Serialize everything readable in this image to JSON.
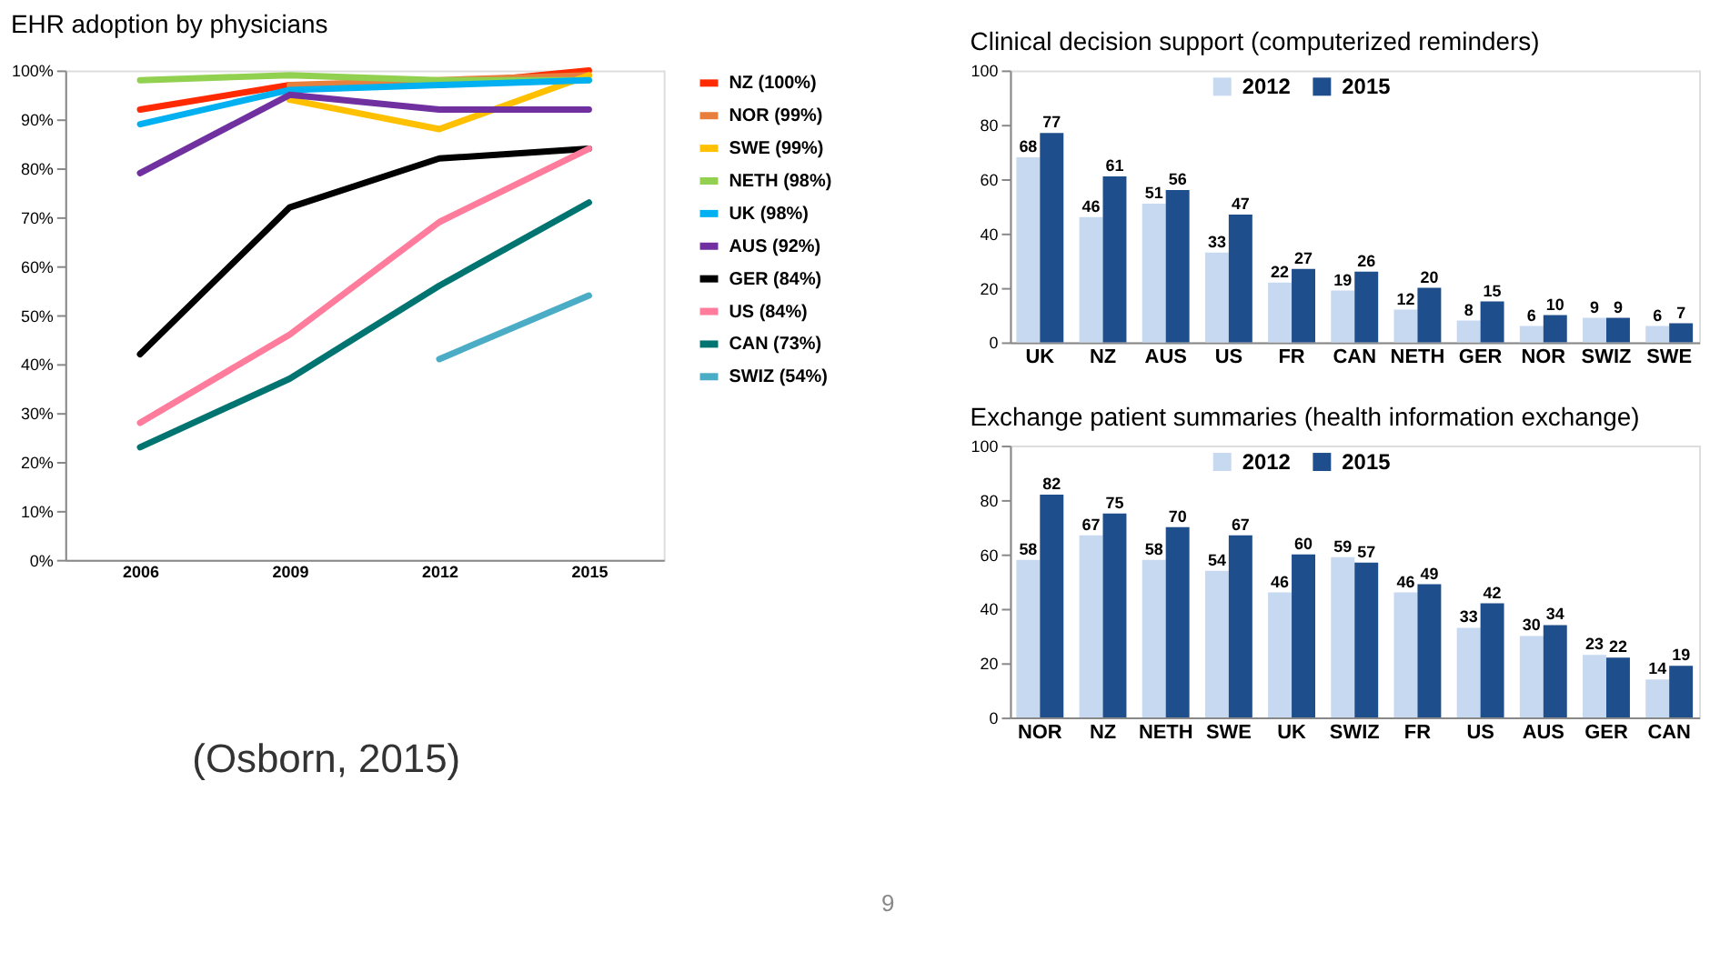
{
  "chart_data": [
    {
      "type": "line",
      "title": "EHR adoption by physicians",
      "categories": [
        "2006",
        "2009",
        "2012",
        "2015"
      ],
      "ylim": [
        0,
        100
      ],
      "yticks": [
        {
          "value": 0,
          "label": "0%"
        },
        {
          "value": 10,
          "label": "10%"
        },
        {
          "value": 20,
          "label": "20%"
        },
        {
          "value": 30,
          "label": "30%"
        },
        {
          "value": 40,
          "label": "40%"
        },
        {
          "value": 50,
          "label": "50%"
        },
        {
          "value": 60,
          "label": "60%"
        },
        {
          "value": 70,
          "label": "70%"
        },
        {
          "value": 80,
          "label": "80%"
        },
        {
          "value": 90,
          "label": "90%"
        },
        {
          "value": 100,
          "label": "100%"
        }
      ],
      "grid": false,
      "legend": "right",
      "marker": "none",
      "line_style": "solid",
      "series": [
        {
          "name": "NZ (100%)",
          "color": "#ff2a00",
          "values": [
            92,
            97,
            97,
            100
          ]
        },
        {
          "name": "NOR (99%)",
          "color": "#e87f3c",
          "values": [
            null,
            97,
            98,
            99
          ]
        },
        {
          "name": "SWE (99%)",
          "color": "#ffc000",
          "values": [
            null,
            94,
            88,
            99
          ]
        },
        {
          "name": "NETH (98%)",
          "color": "#92d050",
          "values": [
            98,
            99,
            98,
            98
          ]
        },
        {
          "name": "UK (98%)",
          "color": "#00b0f0",
          "values": [
            89,
            96,
            97,
            98
          ]
        },
        {
          "name": "AUS (92%)",
          "color": "#7030a0",
          "values": [
            79,
            95,
            92,
            92
          ]
        },
        {
          "name": "GER (84%)",
          "color": "#000000",
          "values": [
            42,
            72,
            82,
            84
          ]
        },
        {
          "name": "US (84%)",
          "color": "#ff7c9c",
          "values": [
            28,
            46,
            69,
            84
          ]
        },
        {
          "name": "CAN (73%)",
          "color": "#007470",
          "values": [
            23,
            37,
            56,
            73
          ]
        },
        {
          "name": "SWIZ (54%)",
          "color": "#4bacc6",
          "values": [
            null,
            null,
            41,
            54
          ]
        }
      ],
      "annotations": [
        "(Osborn, 2015)",
        "9"
      ]
    },
    {
      "type": "bar",
      "title": "Clinical decision support (computerized reminders)",
      "categories": [
        "UK",
        "NZ",
        "AUS",
        "US",
        "FR",
        "CAN",
        "NETH",
        "GER",
        "NOR",
        "SWIZ",
        "SWE"
      ],
      "ylim": [
        0,
        100
      ],
      "yticks": [
        0,
        20,
        40,
        60,
        80,
        100
      ],
      "grid": false,
      "legend": "top",
      "data_labels": true,
      "series": [
        {
          "name": "2012",
          "color": "#c6d9f1",
          "values": [
            68,
            46,
            51,
            33,
            22,
            19,
            12,
            8,
            6,
            9,
            6
          ]
        },
        {
          "name": "2015",
          "color": "#1f4e8c",
          "values": [
            77,
            61,
            56,
            47,
            27,
            26,
            20,
            15,
            10,
            9,
            7
          ]
        }
      ]
    },
    {
      "type": "bar",
      "title": "Exchange patient summaries (health information exchange)",
      "categories": [
        "NOR",
        "NZ",
        "NETH",
        "SWE",
        "UK",
        "SWIZ",
        "FR",
        "US",
        "AUS",
        "GER",
        "CAN"
      ],
      "ylim": [
        0,
        100
      ],
      "yticks": [
        0,
        20,
        40,
        60,
        80,
        100
      ],
      "grid": false,
      "legend": "top",
      "data_labels": true,
      "series": [
        {
          "name": "2012",
          "color": "#c6d9f1",
          "values": [
            58,
            67,
            58,
            54,
            46,
            59,
            46,
            33,
            30,
            23,
            14
          ]
        },
        {
          "name": "2015",
          "color": "#1f4e8c",
          "values": [
            82,
            75,
            70,
            67,
            60,
            57,
            49,
            42,
            34,
            22,
            19
          ]
        }
      ]
    }
  ]
}
